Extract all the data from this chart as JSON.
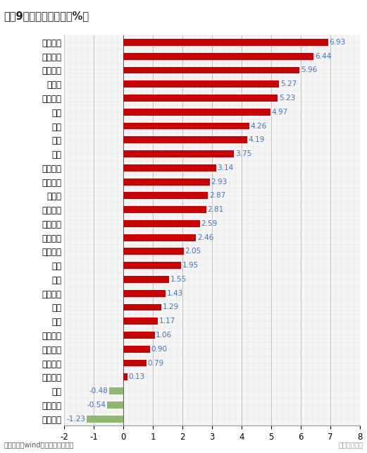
{
  "title": "图表9：各行业涨跌幅（%）",
  "categories": [
    "农林牧渔",
    "公用事业",
    "钢铁",
    "建筑装饰",
    "建筑材料",
    "医药生物",
    "家用电器",
    "采掘",
    "综合",
    "轻工制造",
    "传媒",
    "汽车",
    "纺织服装",
    "商业贸易",
    "交通运输",
    "有色金属",
    "房地产",
    "电气设备",
    "机械设备",
    "电子",
    "银行",
    "通信",
    "化工",
    "国防军工",
    "计算机",
    "食品饮料",
    "非银金融",
    "休闲服务"
  ],
  "values": [
    -1.23,
    -0.54,
    -0.48,
    0.13,
    0.79,
    0.9,
    1.06,
    1.17,
    1.29,
    1.43,
    1.55,
    1.95,
    2.05,
    2.46,
    2.59,
    2.81,
    2.87,
    2.93,
    3.14,
    3.75,
    4.19,
    4.26,
    4.97,
    5.23,
    5.27,
    5.96,
    6.44,
    6.93
  ],
  "bar_color_positive": "#CC0000",
  "bar_color_negative": "#8DB96E",
  "value_color": "#4472C4",
  "title_fontsize": 10.5,
  "label_fontsize": 8.5,
  "tick_fontsize": 8.5,
  "source_text": "资料来源：wind、粤开证券研究院",
  "watermark": "粤开崇利论市",
  "xlim": [
    -2,
    8
  ],
  "xticks": [
    -2,
    -1,
    0,
    1,
    2,
    3,
    4,
    5,
    6,
    7,
    8
  ],
  "bg_color": "#FFFFFF",
  "plot_bg": "#FFFFFF",
  "grid_color": "#BBBBBB",
  "title_bg": "#E0E0E0",
  "bar_height": 0.5
}
